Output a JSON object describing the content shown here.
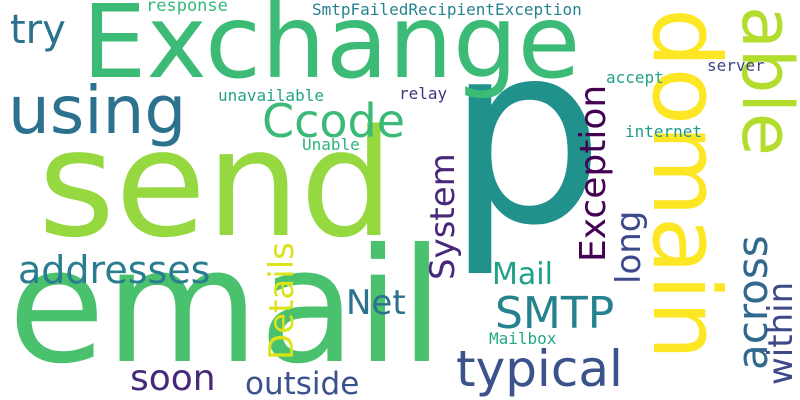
{
  "words": [
    {
      "key": "p",
      "text": "p",
      "color": "#21918c"
    },
    {
      "key": "send",
      "text": "send",
      "color": "#95d840"
    },
    {
      "key": "email",
      "text": "email",
      "color": "#4ac16d"
    },
    {
      "key": "exchange",
      "text": "Exchange",
      "color": "#3bbb75"
    },
    {
      "key": "domain",
      "text": "domain",
      "color": "#fde725"
    },
    {
      "key": "able",
      "text": "able",
      "color": "#b2dd2d"
    },
    {
      "key": "using",
      "text": "using",
      "color": "#2c728e"
    },
    {
      "key": "ccode",
      "text": "Ccode",
      "color": "#3aba76"
    },
    {
      "key": "try",
      "text": "try",
      "color": "#2c728e"
    },
    {
      "key": "addresses",
      "text": "addresses",
      "color": "#287d8e"
    },
    {
      "key": "smtp",
      "text": "SMTP",
      "color": "#26828e"
    },
    {
      "key": "typical",
      "text": "typical",
      "color": "#3b528b"
    },
    {
      "key": "soon",
      "text": "soon",
      "color": "#482878"
    },
    {
      "key": "outside",
      "text": "outside",
      "color": "#3b528b"
    },
    {
      "key": "net",
      "text": "Net",
      "color": "#2c728e"
    },
    {
      "key": "mail",
      "text": "Mail",
      "color": "#1fa088"
    },
    {
      "key": "system",
      "text": "System",
      "color": "#482878"
    },
    {
      "key": "details",
      "text": "Details",
      "color": "#dce319"
    },
    {
      "key": "exception",
      "text": "Exception",
      "color": "#440154"
    },
    {
      "key": "long",
      "text": "long",
      "color": "#3e4989"
    },
    {
      "key": "across",
      "text": "across",
      "color": "#31688e"
    },
    {
      "key": "within",
      "text": "within",
      "color": "#3e4989"
    },
    {
      "key": "response",
      "text": "response",
      "color": "#35b779"
    },
    {
      "key": "smtpfailed",
      "text": "SmtpFailedRecipientException",
      "color": "#26828e"
    },
    {
      "key": "unavailable",
      "text": "unavailable",
      "color": "#21a585"
    },
    {
      "key": "relay",
      "text": "relay",
      "color": "#46337e"
    },
    {
      "key": "accept",
      "text": "accept",
      "color": "#20a386"
    },
    {
      "key": "server",
      "text": "server",
      "color": "#414487"
    },
    {
      "key": "internet",
      "text": "internet",
      "color": "#1f9a8a"
    },
    {
      "key": "unable",
      "text": "Unable",
      "color": "#2db27d"
    },
    {
      "key": "mailbox",
      "text": "Mailbox",
      "color": "#22a884"
    }
  ]
}
